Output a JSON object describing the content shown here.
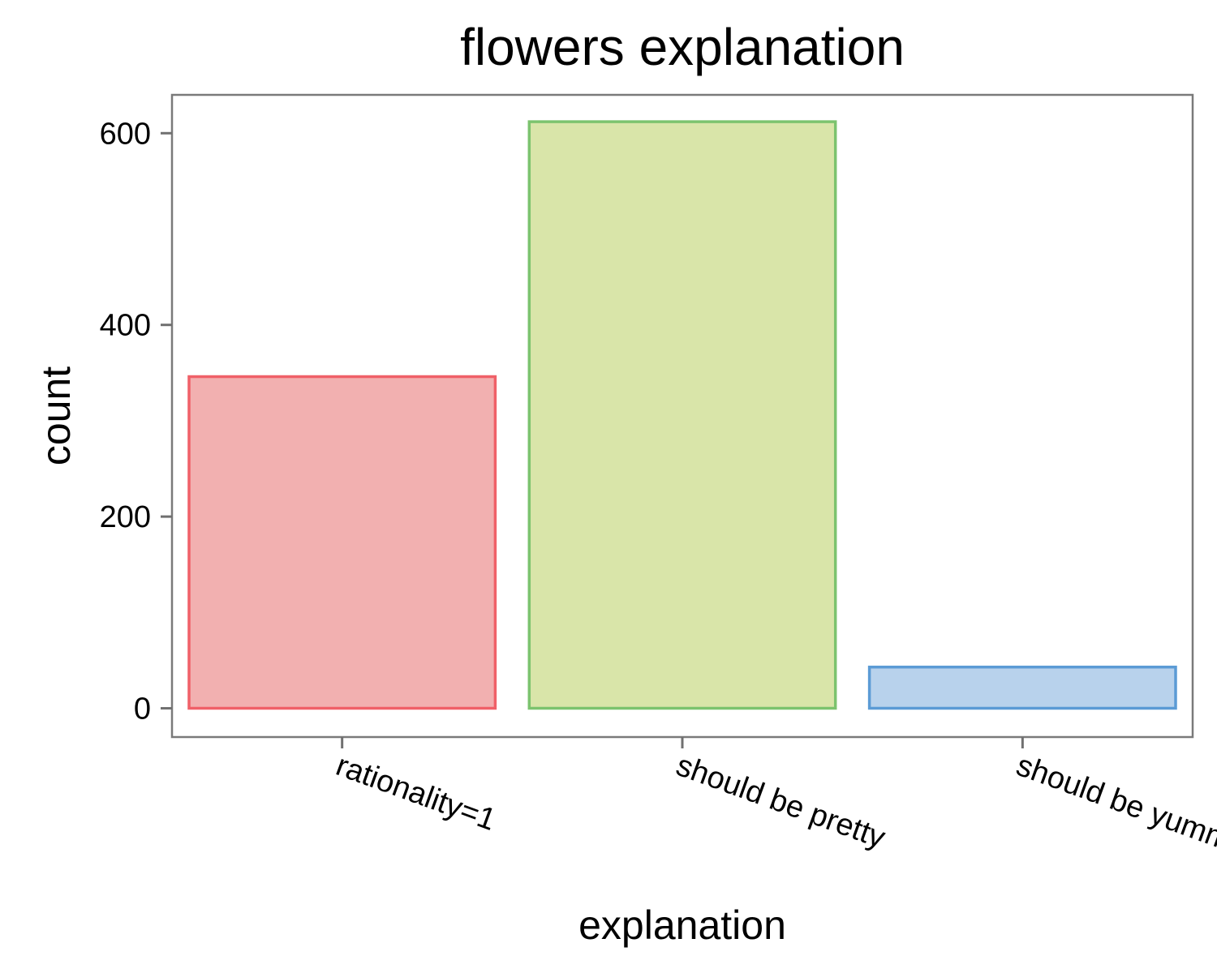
{
  "chart_data": {
    "type": "bar",
    "title": "flowers explanation",
    "xlabel": "explanation",
    "ylabel": "count",
    "categories": [
      "rationality=1",
      "should be pretty",
      "should be yummy"
    ],
    "values": [
      346,
      612,
      43
    ],
    "ylim": [
      -30,
      640
    ],
    "yticks": [
      0,
      200,
      400,
      600
    ],
    "grid": false,
    "legend": "none",
    "colors": {
      "fills": [
        "#f2b0b0",
        "#d9e5a9",
        "#b8d2ec"
      ],
      "strokes": [
        "#f06068",
        "#7cc36e",
        "#5b9bd5"
      ],
      "panel_border": "#7a7a7a",
      "axis": "#707070"
    }
  }
}
